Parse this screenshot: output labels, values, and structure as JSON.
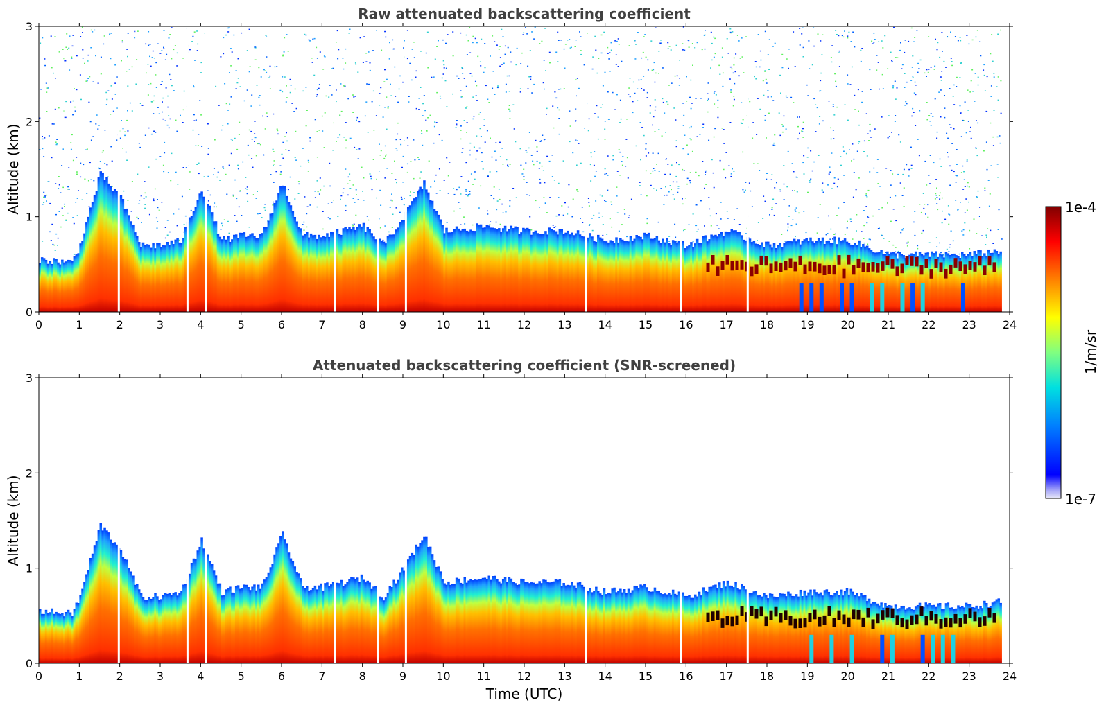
{
  "chart_data": [
    {
      "type": "heatmap",
      "title": "Raw attenuated backscattering coefficient",
      "xlabel": "",
      "ylabel": "Altitude (km)",
      "xlim": [
        0,
        24
      ],
      "ylim": [
        0,
        3
      ],
      "xticks": [
        "0",
        "1",
        "2",
        "3",
        "4",
        "5",
        "6",
        "7",
        "8",
        "9",
        "10",
        "11",
        "12",
        "13",
        "14",
        "15",
        "16",
        "17",
        "18",
        "19",
        "20",
        "21",
        "22",
        "23",
        "24"
      ],
      "yticks": [
        "0",
        "1",
        "2",
        "3"
      ],
      "screened": false,
      "boundary_layer_top_km": {
        "time_utc": [
          0,
          0.8,
          1.0,
          1.5,
          2.0,
          2.5,
          3.0,
          3.5,
          4.0,
          4.5,
          5.0,
          5.5,
          6.0,
          6.5,
          7.0,
          8.0,
          8.5,
          9.0,
          9.5,
          10.0,
          11.0,
          12.0,
          13.0,
          14.0,
          15.0,
          16.0,
          17.0,
          18.0,
          19.0,
          20.0,
          21.0,
          22.0,
          23.0,
          23.8
        ],
        "height_km": [
          0.55,
          0.52,
          0.7,
          1.45,
          1.2,
          0.7,
          0.7,
          0.75,
          1.3,
          0.75,
          0.8,
          0.8,
          1.35,
          0.8,
          0.8,
          0.9,
          0.7,
          1.0,
          1.35,
          0.85,
          0.9,
          0.85,
          0.85,
          0.75,
          0.8,
          0.7,
          0.85,
          0.7,
          0.75,
          0.75,
          0.6,
          0.6,
          0.6,
          0.65
        ]
      }
    },
    {
      "type": "heatmap",
      "title": "Attenuated backscattering coefficient (SNR-screened)",
      "xlabel": "Time (UTC)",
      "ylabel": "Altitude (km)",
      "xlim": [
        0,
        24
      ],
      "ylim": [
        0,
        3
      ],
      "xticks": [
        "0",
        "1",
        "2",
        "3",
        "4",
        "5",
        "6",
        "7",
        "8",
        "9",
        "10",
        "11",
        "12",
        "13",
        "14",
        "15",
        "16",
        "17",
        "18",
        "19",
        "20",
        "21",
        "22",
        "23",
        "24"
      ],
      "yticks": [
        "0",
        "1",
        "2",
        "3"
      ],
      "screened": true,
      "boundary_layer_top_km": {
        "time_utc": [
          0,
          0.8,
          1.0,
          1.5,
          2.0,
          2.5,
          3.0,
          3.5,
          4.0,
          4.5,
          5.0,
          5.5,
          6.0,
          6.5,
          7.0,
          8.0,
          8.5,
          9.0,
          9.5,
          10.0,
          11.0,
          12.0,
          13.0,
          14.0,
          15.0,
          16.0,
          17.0,
          18.0,
          19.0,
          20.0,
          21.0,
          22.0,
          23.0,
          23.8
        ],
        "height_km": [
          0.55,
          0.52,
          0.7,
          1.45,
          1.2,
          0.7,
          0.7,
          0.75,
          1.3,
          0.75,
          0.8,
          0.8,
          1.35,
          0.8,
          0.8,
          0.9,
          0.7,
          1.0,
          1.35,
          0.85,
          0.9,
          0.85,
          0.85,
          0.75,
          0.8,
          0.7,
          0.85,
          0.7,
          0.75,
          0.75,
          0.6,
          0.6,
          0.6,
          0.65
        ]
      }
    }
  ],
  "colorbar": {
    "label": "1/m/sr",
    "max_label": "1e-4",
    "min_label": "1e-7",
    "colors": [
      "#e8e8f8",
      "#a0a0f8",
      "#0000ff",
      "#0080ff",
      "#00e0e0",
      "#80ff80",
      "#ffff00",
      "#ff8000",
      "#ff0000",
      "#800000"
    ]
  }
}
